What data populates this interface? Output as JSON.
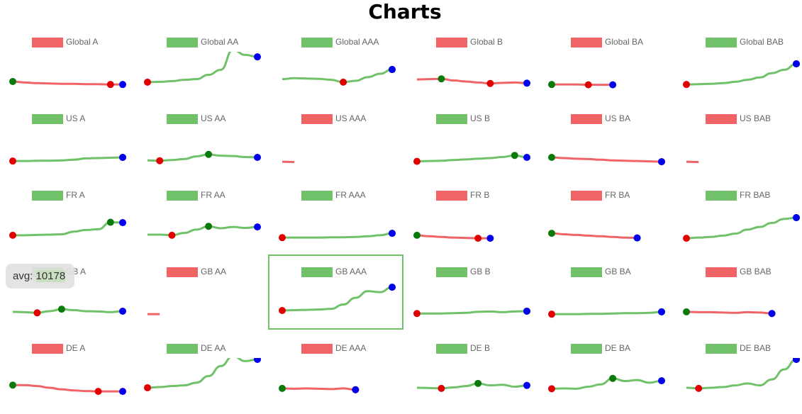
{
  "title": "Charts",
  "tooltip": {
    "label": "avg:",
    "value": 10178
  },
  "chart_data": [
    {
      "type": "line",
      "ylim": [
        0,
        100
      ],
      "series": [
        {
          "name": "Global A",
          "color": "#f06468",
          "values": [
            15,
            12,
            10,
            9,
            8,
            8,
            7,
            7,
            6,
            6
          ]
        }
      ]
    },
    {
      "type": "line",
      "ylim": [
        0,
        100
      ],
      "series": [
        {
          "name": "Global AA",
          "color": "#70c16a",
          "values": [
            13,
            14,
            16,
            20,
            22,
            35,
            50,
            110,
            95,
            89
          ]
        }
      ]
    },
    {
      "type": "line",
      "ylim": [
        0,
        100
      ],
      "series": [
        {
          "name": "Global AAA",
          "color": "#70c16a",
          "values": [
            22,
            25,
            24,
            23,
            20,
            13,
            17,
            28,
            38,
            51
          ]
        }
      ]
    },
    {
      "type": "line",
      "ylim": [
        0,
        100
      ],
      "series": [
        {
          "name": "Global B",
          "color": "#f06468",
          "values": [
            21,
            22,
            23,
            18,
            15,
            12,
            9,
            11,
            12,
            10
          ]
        }
      ]
    },
    {
      "type": "line",
      "ylim": [
        0,
        100
      ],
      "series": [
        {
          "name": "Global BA",
          "color": "#f06468",
          "values": [
            6,
            6,
            6,
            5,
            5,
            5
          ]
        }
      ]
    },
    {
      "type": "line",
      "ylim": [
        0,
        100
      ],
      "series": [
        {
          "name": "Global BAB",
          "color": "#70c16a",
          "values": [
            6,
            7,
            8,
            10,
            14,
            20,
            27,
            40,
            50,
            68
          ]
        }
      ]
    },
    {
      "type": "line",
      "ylim": [
        0,
        100
      ],
      "series": [
        {
          "name": "US A",
          "color": "#70c16a",
          "values": [
            6,
            6,
            7,
            7,
            8,
            10,
            14,
            15,
            16,
            17
          ]
        }
      ]
    },
    {
      "type": "line",
      "ylim": [
        0,
        100
      ],
      "series": [
        {
          "name": "US AA",
          "color": "#70c16a",
          "values": [
            8,
            7,
            9,
            12,
            20,
            26,
            22,
            21,
            18,
            17
          ]
        }
      ]
    },
    {
      "type": "line",
      "ylim": [
        0,
        100
      ],
      "series": [
        {
          "name": "US AAA",
          "color": "#f06468",
          "values": [
            4,
            3
          ]
        }
      ]
    },
    {
      "type": "line",
      "ylim": [
        0,
        100
      ],
      "series": [
        {
          "name": "US B",
          "color": "#70c16a",
          "values": [
            5,
            6,
            7,
            9,
            11,
            13,
            15,
            18,
            23,
            17
          ]
        }
      ]
    },
    {
      "type": "line",
      "ylim": [
        0,
        100
      ],
      "series": [
        {
          "name": "US BA",
          "color": "#f06468",
          "values": [
            17,
            15,
            13,
            12,
            10,
            8,
            7,
            6,
            5,
            4
          ]
        }
      ]
    },
    {
      "type": "line",
      "ylim": [
        0,
        100
      ],
      "series": [
        {
          "name": "US BAB",
          "color": "#f06468",
          "values": [
            4,
            3
          ]
        }
      ]
    },
    {
      "type": "line",
      "ylim": [
        0,
        100
      ],
      "series": [
        {
          "name": "FR A",
          "color": "#70c16a",
          "values": [
            13,
            13,
            14,
            15,
            16,
            24,
            29,
            31,
            52,
            51
          ]
        }
      ]
    },
    {
      "type": "line",
      "ylim": [
        0,
        100
      ],
      "series": [
        {
          "name": "FR AA",
          "color": "#70c16a",
          "values": [
            15,
            15,
            13,
            20,
            30,
            40,
            34,
            38,
            35,
            38
          ]
        }
      ]
    },
    {
      "type": "line",
      "ylim": [
        0,
        100
      ],
      "series": [
        {
          "name": "FR AAA",
          "color": "#70c16a",
          "values": [
            6,
            6,
            6,
            6,
            7,
            7,
            8,
            10,
            13,
            19
          ]
        }
      ]
    },
    {
      "type": "line",
      "ylim": [
        0,
        100
      ],
      "series": [
        {
          "name": "FR B",
          "color": "#f06468",
          "values": [
            13,
            10,
            8,
            6,
            5,
            4,
            4
          ]
        }
      ]
    },
    {
      "type": "line",
      "ylim": [
        0,
        100
      ],
      "series": [
        {
          "name": "FR BA",
          "color": "#f06468",
          "values": [
            19,
            16,
            14,
            12,
            10,
            8,
            6,
            5
          ]
        }
      ]
    },
    {
      "type": "line",
      "ylim": [
        0,
        100
      ],
      "series": [
        {
          "name": "FR BAB",
          "color": "#70c16a",
          "values": [
            4,
            6,
            8,
            12,
            18,
            30,
            38,
            50,
            62,
            66
          ]
        }
      ]
    },
    {
      "type": "line",
      "ylim": [
        0,
        100
      ],
      "series": [
        {
          "name": "GB A",
          "color": "#70c16a",
          "values": [
            13,
            12,
            10,
            15,
            21,
            18,
            15,
            14,
            12,
            15
          ]
        }
      ]
    },
    {
      "type": "line",
      "ylim": [
        0,
        100
      ],
      "series": [
        {
          "name": "GB AA",
          "color": "#f06468",
          "values": [
            6,
            6
          ]
        }
      ]
    },
    {
      "type": "line",
      "ylim": [
        0,
        100
      ],
      "series": [
        {
          "name": "GB AAA",
          "color": "#70c16a",
          "values": [
            17,
            18,
            19,
            20,
            22,
            35,
            55,
            75,
            72,
            87
          ]
        }
      ]
    },
    {
      "type": "line",
      "ylim": [
        0,
        100
      ],
      "series": [
        {
          "name": "GB B",
          "color": "#70c16a",
          "values": [
            8,
            8,
            8,
            9,
            10,
            13,
            14,
            12,
            14,
            15
          ]
        }
      ]
    },
    {
      "type": "line",
      "ylim": [
        0,
        100
      ],
      "series": [
        {
          "name": "GB BA",
          "color": "#70c16a",
          "values": [
            6,
            6,
            6,
            7,
            7,
            8,
            9,
            9,
            10,
            13
          ]
        }
      ]
    },
    {
      "type": "line",
      "ylim": [
        0,
        100
      ],
      "series": [
        {
          "name": "GB BAB",
          "color": "#f06468",
          "values": [
            13,
            12,
            12,
            11,
            10,
            12,
            11,
            8
          ]
        }
      ]
    },
    {
      "type": "line",
      "ylim": [
        0,
        100
      ],
      "series": [
        {
          "name": "DE A",
          "color": "#f06468",
          "values": [
            23,
            23,
            20,
            15,
            10,
            7,
            5,
            4,
            4,
            4
          ]
        }
      ]
    },
    {
      "type": "line",
      "ylim": [
        0,
        100
      ],
      "series": [
        {
          "name": "DE AA",
          "color": "#70c16a",
          "values": [
            15,
            17,
            20,
            22,
            30,
            50,
            80,
            110,
            95,
            100
          ]
        }
      ]
    },
    {
      "type": "line",
      "ylim": [
        0,
        100
      ],
      "series": [
        {
          "name": "DE AAA",
          "color": "#f06468",
          "values": [
            13,
            12,
            13,
            12,
            11,
            13,
            9
          ]
        }
      ]
    },
    {
      "type": "line",
      "ylim": [
        0,
        100
      ],
      "series": [
        {
          "name": "DE B",
          "color": "#70c16a",
          "values": [
            15,
            14,
            13,
            16,
            20,
            28,
            22,
            24,
            18,
            22
          ]
        }
      ]
    },
    {
      "type": "line",
      "ylim": [
        0,
        100
      ],
      "series": [
        {
          "name": "DE BA",
          "color": "#70c16a",
          "values": [
            12,
            13,
            12,
            18,
            25,
            43,
            35,
            38,
            30,
            36
          ]
        }
      ]
    },
    {
      "type": "line",
      "ylim": [
        0,
        100
      ],
      "series": [
        {
          "name": "DE BAB",
          "color": "#70c16a",
          "values": [
            15,
            13,
            15,
            17,
            22,
            28,
            22,
            40,
            70,
            100
          ]
        }
      ]
    }
  ]
}
